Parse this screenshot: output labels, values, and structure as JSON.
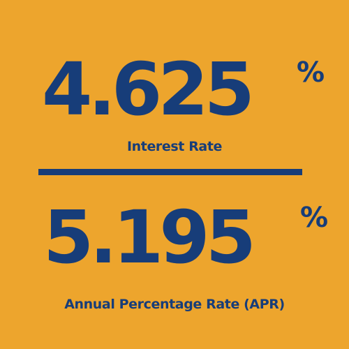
{
  "interest": {
    "value": "4.625",
    "unit": "%",
    "label": "Interest Rate"
  },
  "apr": {
    "value": "5.195",
    "unit": "%",
    "label": "Annual Percentage Rate (APR)"
  },
  "colors": {
    "background": "#eda52d",
    "text": "#173d79"
  }
}
